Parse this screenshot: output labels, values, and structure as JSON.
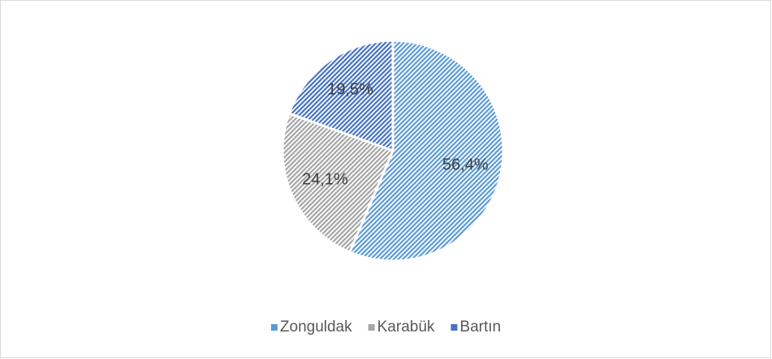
{
  "chart_data": {
    "type": "pie",
    "categories": [
      "Zonguldak",
      "Karabük",
      "Bartın"
    ],
    "values": [
      56.4,
      24.1,
      19.5
    ],
    "value_labels": [
      "56,4%",
      "24,1%",
      "19,5%"
    ],
    "colors": [
      "#5b9bd5",
      "#a5a5a5",
      "#4472c4"
    ],
    "legend": "bottom"
  }
}
